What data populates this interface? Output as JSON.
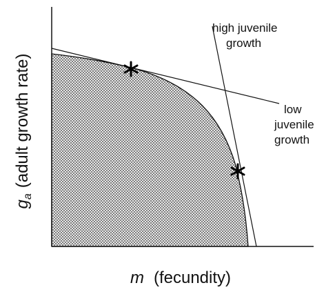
{
  "y_axis_label": {
    "symbol": "g",
    "subscript": "a",
    "text": "(adult growth rate)"
  },
  "x_axis_label": {
    "symbol": "m",
    "text": "(fecundity)"
  },
  "annotations": [
    {
      "lines": [
        "high juvenile",
        "growth"
      ]
    },
    {
      "lines": [
        "low",
        "juvenile",
        "growth"
      ]
    }
  ]
}
